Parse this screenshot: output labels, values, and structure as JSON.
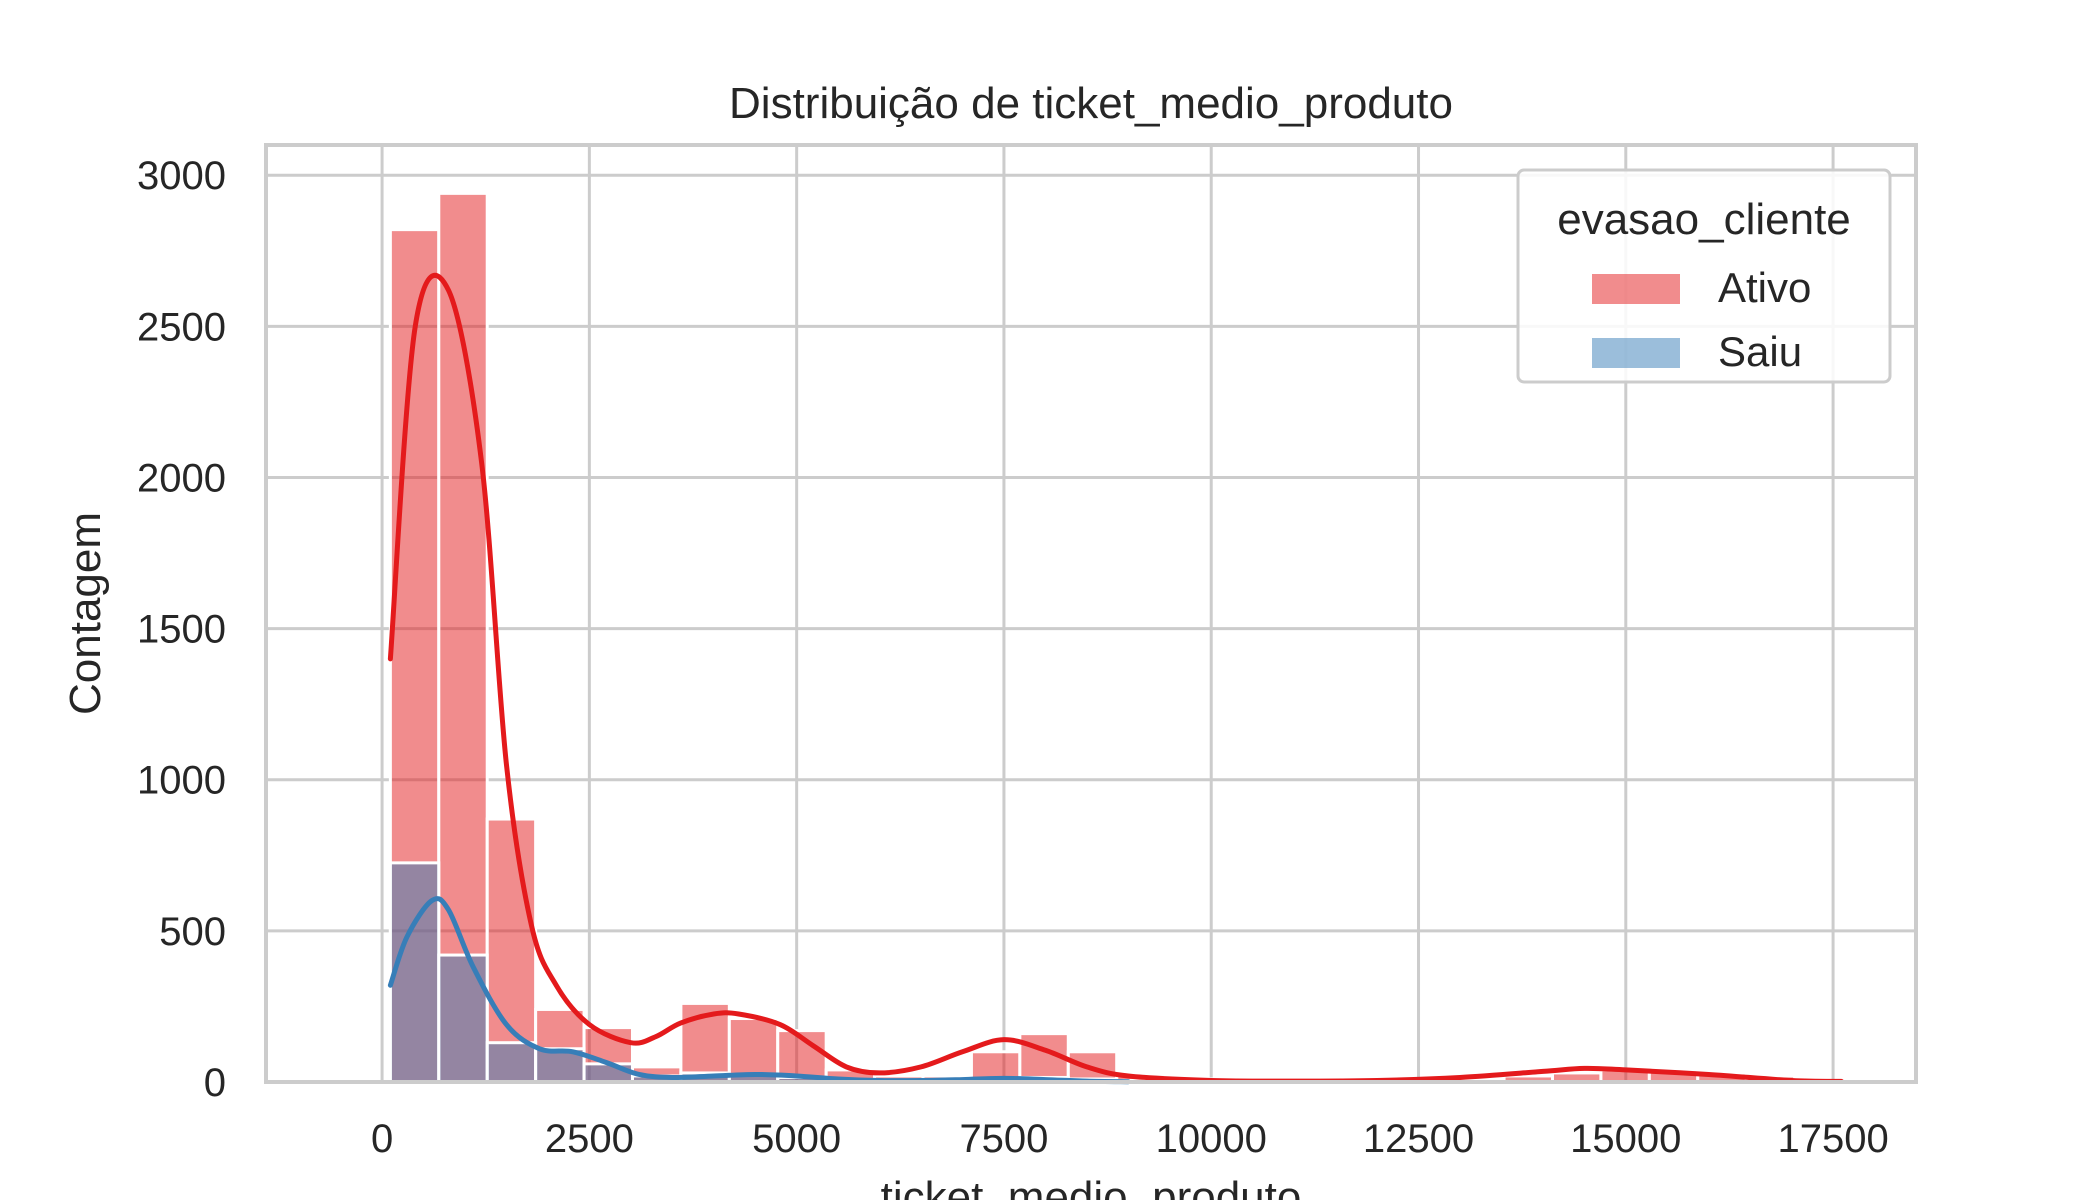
{
  "chart_data": {
    "type": "bar",
    "title": "Distribuição de ticket_medio_produto",
    "xlabel": "ticket_medio_produto",
    "ylabel": "Contagem",
    "xlim": [
      -1400,
      18500
    ],
    "ylim": [
      0,
      3100
    ],
    "xticks": [
      0,
      2500,
      5000,
      7500,
      10000,
      12500,
      15000,
      17500
    ],
    "xtick_labels": [
      "0",
      "2500",
      "5000",
      "7500",
      "10000",
      "12500",
      "15000",
      "17500"
    ],
    "yticks": [
      0,
      500,
      1000,
      1500,
      2000,
      2500,
      3000
    ],
    "ytick_labels": [
      "0",
      "500",
      "1000",
      "1500",
      "2000",
      "2500",
      "3000"
    ],
    "grid": true,
    "legend": {
      "title": "evasao_cliente",
      "placement": "top-right"
    },
    "colors": {
      "Ativo": "#e41a1c",
      "Saiu": "#377eb8",
      "grid": "#cccccc",
      "spine": "#cccccc",
      "text": "#262626"
    },
    "bins": {
      "start": 100,
      "width": 584,
      "count": 30
    },
    "series": [
      {
        "name": "Ativo",
        "values": [
          2820,
          2940,
          870,
          240,
          180,
          50,
          260,
          210,
          170,
          40,
          20,
          20,
          100,
          160,
          100,
          25,
          10,
          5,
          5,
          5,
          5,
          5,
          10,
          20,
          30,
          40,
          40,
          30,
          20,
          5
        ],
        "kde_x": [
          100,
          400,
          800,
          1200,
          1500,
          1800,
          2100,
          2500,
          3000,
          3300,
          3600,
          4000,
          4300,
          4800,
          5200,
          5600,
          6000,
          6500,
          7000,
          7500,
          8000,
          8500,
          9000,
          10000,
          11000,
          12000,
          13000,
          14000,
          14500,
          15000,
          16000,
          17000,
          17600
        ],
        "kde_y": [
          1400,
          2500,
          2620,
          2050,
          1050,
          520,
          320,
          190,
          130,
          150,
          195,
          225,
          225,
          190,
          120,
          50,
          30,
          50,
          100,
          140,
          105,
          50,
          20,
          5,
          3,
          5,
          15,
          35,
          45,
          40,
          25,
          5,
          2
        ]
      },
      {
        "name": "Saiu",
        "values": [
          725,
          420,
          130,
          110,
          60,
          20,
          30,
          25,
          15,
          5,
          5,
          5,
          10,
          15,
          10,
          5,
          2,
          0,
          0,
          0,
          0,
          0,
          0,
          0,
          0,
          0,
          0,
          0,
          0,
          0
        ],
        "kde_x": [
          100,
          300,
          600,
          800,
          1100,
          1500,
          1900,
          2300,
          2700,
          3100,
          3500,
          4000,
          4500,
          5000,
          5500,
          6000,
          6500,
          7000,
          7500,
          8000,
          8500,
          9000
        ],
        "kde_y": [
          320,
          480,
          600,
          570,
          380,
          190,
          110,
          100,
          65,
          25,
          15,
          20,
          25,
          20,
          10,
          5,
          5,
          8,
          12,
          8,
          3,
          1
        ]
      }
    ]
  }
}
